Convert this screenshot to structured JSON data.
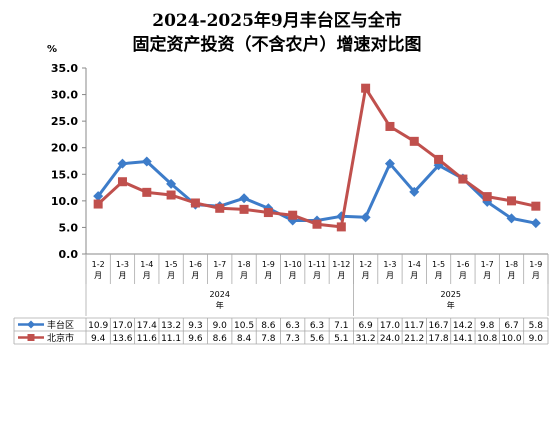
{
  "title_line1": "2024-2025年9月丰台区与全市",
  "title_line2": "固定资产投资（不含农户）增速对比图",
  "chart_data": {
    "type": "line",
    "ylabel": "%",
    "ylim": [
      0,
      35
    ],
    "yticks": [
      "0.0",
      "5.0",
      "10.0",
      "15.0",
      "20.0",
      "25.0",
      "30.0",
      "35.0"
    ],
    "grid": false,
    "categories": [
      [
        "1-2",
        "月"
      ],
      [
        "1-3",
        "月"
      ],
      [
        "1-4",
        "月"
      ],
      [
        "1-5",
        "月"
      ],
      [
        "1-6",
        "月"
      ],
      [
        "1-7",
        "月"
      ],
      [
        "1-8",
        "月"
      ],
      [
        "1-9",
        "月"
      ],
      [
        "1-10",
        "月"
      ],
      [
        "1-11",
        "月"
      ],
      [
        "1-12",
        "月"
      ],
      [
        "1-2",
        "月"
      ],
      [
        "1-3",
        "月"
      ],
      [
        "1-4",
        "月"
      ],
      [
        "1-5",
        "月"
      ],
      [
        "1-6",
        "月"
      ],
      [
        "1-7",
        "月"
      ],
      [
        "1-8",
        "月"
      ],
      [
        "1-9",
        "月"
      ]
    ],
    "groups": [
      {
        "label": "2024",
        "sub": "年",
        "start": 0,
        "end": 10
      },
      {
        "label": "2025",
        "sub": "年",
        "start": 11,
        "end": 18
      }
    ],
    "series": [
      {
        "name": "丰台区",
        "color": "#3d7cc9",
        "marker": "diamond",
        "values": [
          10.9,
          17.0,
          17.4,
          13.2,
          9.3,
          9.0,
          10.5,
          8.6,
          6.3,
          6.3,
          7.1,
          6.9,
          17.0,
          11.7,
          16.7,
          14.2,
          9.8,
          6.7,
          5.8
        ],
        "labels": [
          "10.9",
          "17.0",
          "17.4",
          "13.2",
          "9.3",
          "9.0",
          "10.5",
          "8.6",
          "6.3",
          "6.3",
          "7.1",
          "6.9",
          "17.0",
          "11.7",
          "16.7",
          "14.2",
          "9.8",
          "6.7",
          "5.8"
        ]
      },
      {
        "name": "北京市",
        "color": "#c0504d",
        "marker": "square",
        "values": [
          9.4,
          13.6,
          11.6,
          11.1,
          9.6,
          8.6,
          8.4,
          7.8,
          7.3,
          5.6,
          5.1,
          31.2,
          24.0,
          21.2,
          17.8,
          14.1,
          10.8,
          10.0,
          9.0
        ],
        "labels": [
          "9.4",
          "13.6",
          "11.6",
          "11.1",
          "9.6",
          "8.6",
          "8.4",
          "7.8",
          "7.3",
          "5.6",
          "5.1",
          "31.2",
          "24.0",
          "21.2",
          "17.8",
          "14.1",
          "10.8",
          "10.0",
          "9.0"
        ]
      }
    ]
  }
}
